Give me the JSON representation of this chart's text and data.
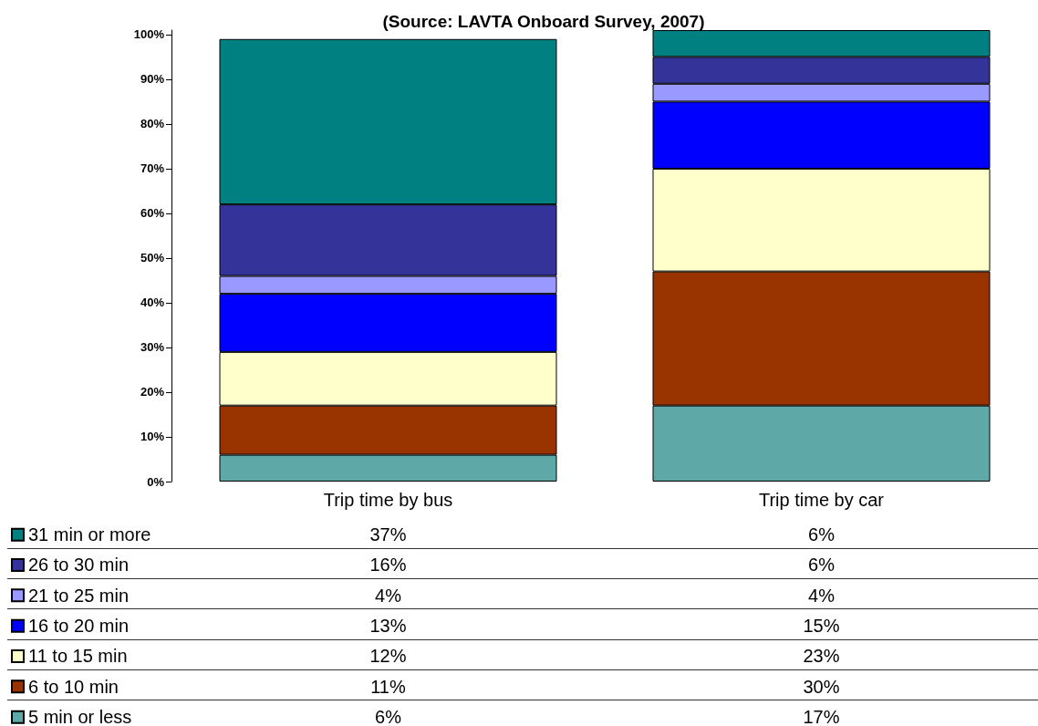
{
  "chart_data": {
    "type": "bar",
    "title": "(Source: LAVTA Onboard Survey, 2007)",
    "categories": [
      "Trip time by bus",
      "Trip time by car"
    ],
    "stacked": true,
    "ylim": [
      0,
      101
    ],
    "yticks": [
      {
        "value": 0,
        "label": "0%"
      },
      {
        "value": 10,
        "label": "10%"
      },
      {
        "value": 20,
        "label": "20%"
      },
      {
        "value": 30,
        "label": "30%"
      },
      {
        "value": 40,
        "label": "40%"
      },
      {
        "value": 50,
        "label": "50%"
      },
      {
        "value": 60,
        "label": "60%"
      },
      {
        "value": 70,
        "label": "70%"
      },
      {
        "value": 80,
        "label": "80%"
      },
      {
        "value": 90,
        "label": "90%"
      },
      {
        "value": 100,
        "label": "100%"
      }
    ],
    "legend": "bottom left",
    "series": [
      {
        "name": "5 min or less",
        "color": "#5fa8a8",
        "values": [
          6,
          17
        ],
        "value_labels": [
          "6%",
          "17%"
        ]
      },
      {
        "name": "6 to 10 min",
        "color": "#993300",
        "values": [
          11,
          30
        ],
        "value_labels": [
          "11%",
          "30%"
        ]
      },
      {
        "name": "11 to 15 min",
        "color": "#ffffcc",
        "values": [
          12,
          23
        ],
        "value_labels": [
          "12%",
          "23%"
        ]
      },
      {
        "name": "16 to 20 min",
        "color": "#0000ff",
        "values": [
          13,
          15
        ],
        "value_labels": [
          "13%",
          "15%"
        ]
      },
      {
        "name": "21 to 25 min",
        "color": "#9999ff",
        "values": [
          4,
          4
        ],
        "value_labels": [
          "4%",
          "4%"
        ]
      },
      {
        "name": "26 to 30 min",
        "color": "#333399",
        "values": [
          16,
          6
        ],
        "value_labels": [
          "16%",
          "6%"
        ]
      },
      {
        "name": "31 min or more",
        "color": "#008080",
        "values": [
          37,
          6
        ],
        "value_labels": [
          "37%",
          "6%"
        ]
      }
    ]
  }
}
